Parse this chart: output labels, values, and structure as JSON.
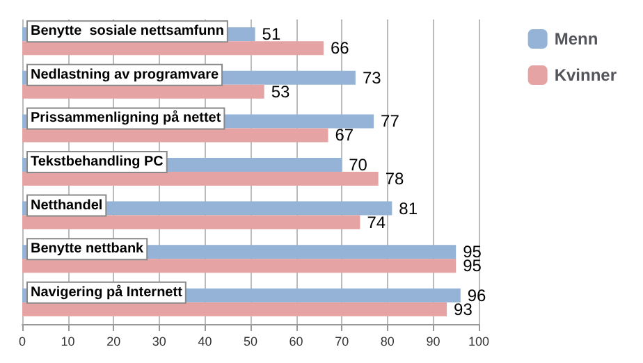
{
  "chart_data": {
    "type": "bar",
    "orientation": "horizontal",
    "categories": [
      "Benytte  sosiale nettsamfunn",
      "Nedlastning av programvare",
      "Prissammenligning på nettet",
      "Tekstbehandling PC",
      "Netthandel",
      "Benytte nettbank",
      "Navigering på Internett"
    ],
    "series": [
      {
        "name": "Menn",
        "color": "#95b3d7",
        "values": [
          51,
          73,
          77,
          70,
          81,
          95,
          96
        ]
      },
      {
        "name": "Kvinner",
        "color": "#e6a3a3",
        "values": [
          66,
          53,
          67,
          78,
          74,
          95,
          93
        ]
      }
    ],
    "xlim": [
      0,
      100
    ],
    "xticks": [
      0,
      10,
      20,
      30,
      40,
      50,
      60,
      70,
      80,
      90,
      100
    ],
    "grid": "x",
    "legend": "top right",
    "data_labels": true
  }
}
